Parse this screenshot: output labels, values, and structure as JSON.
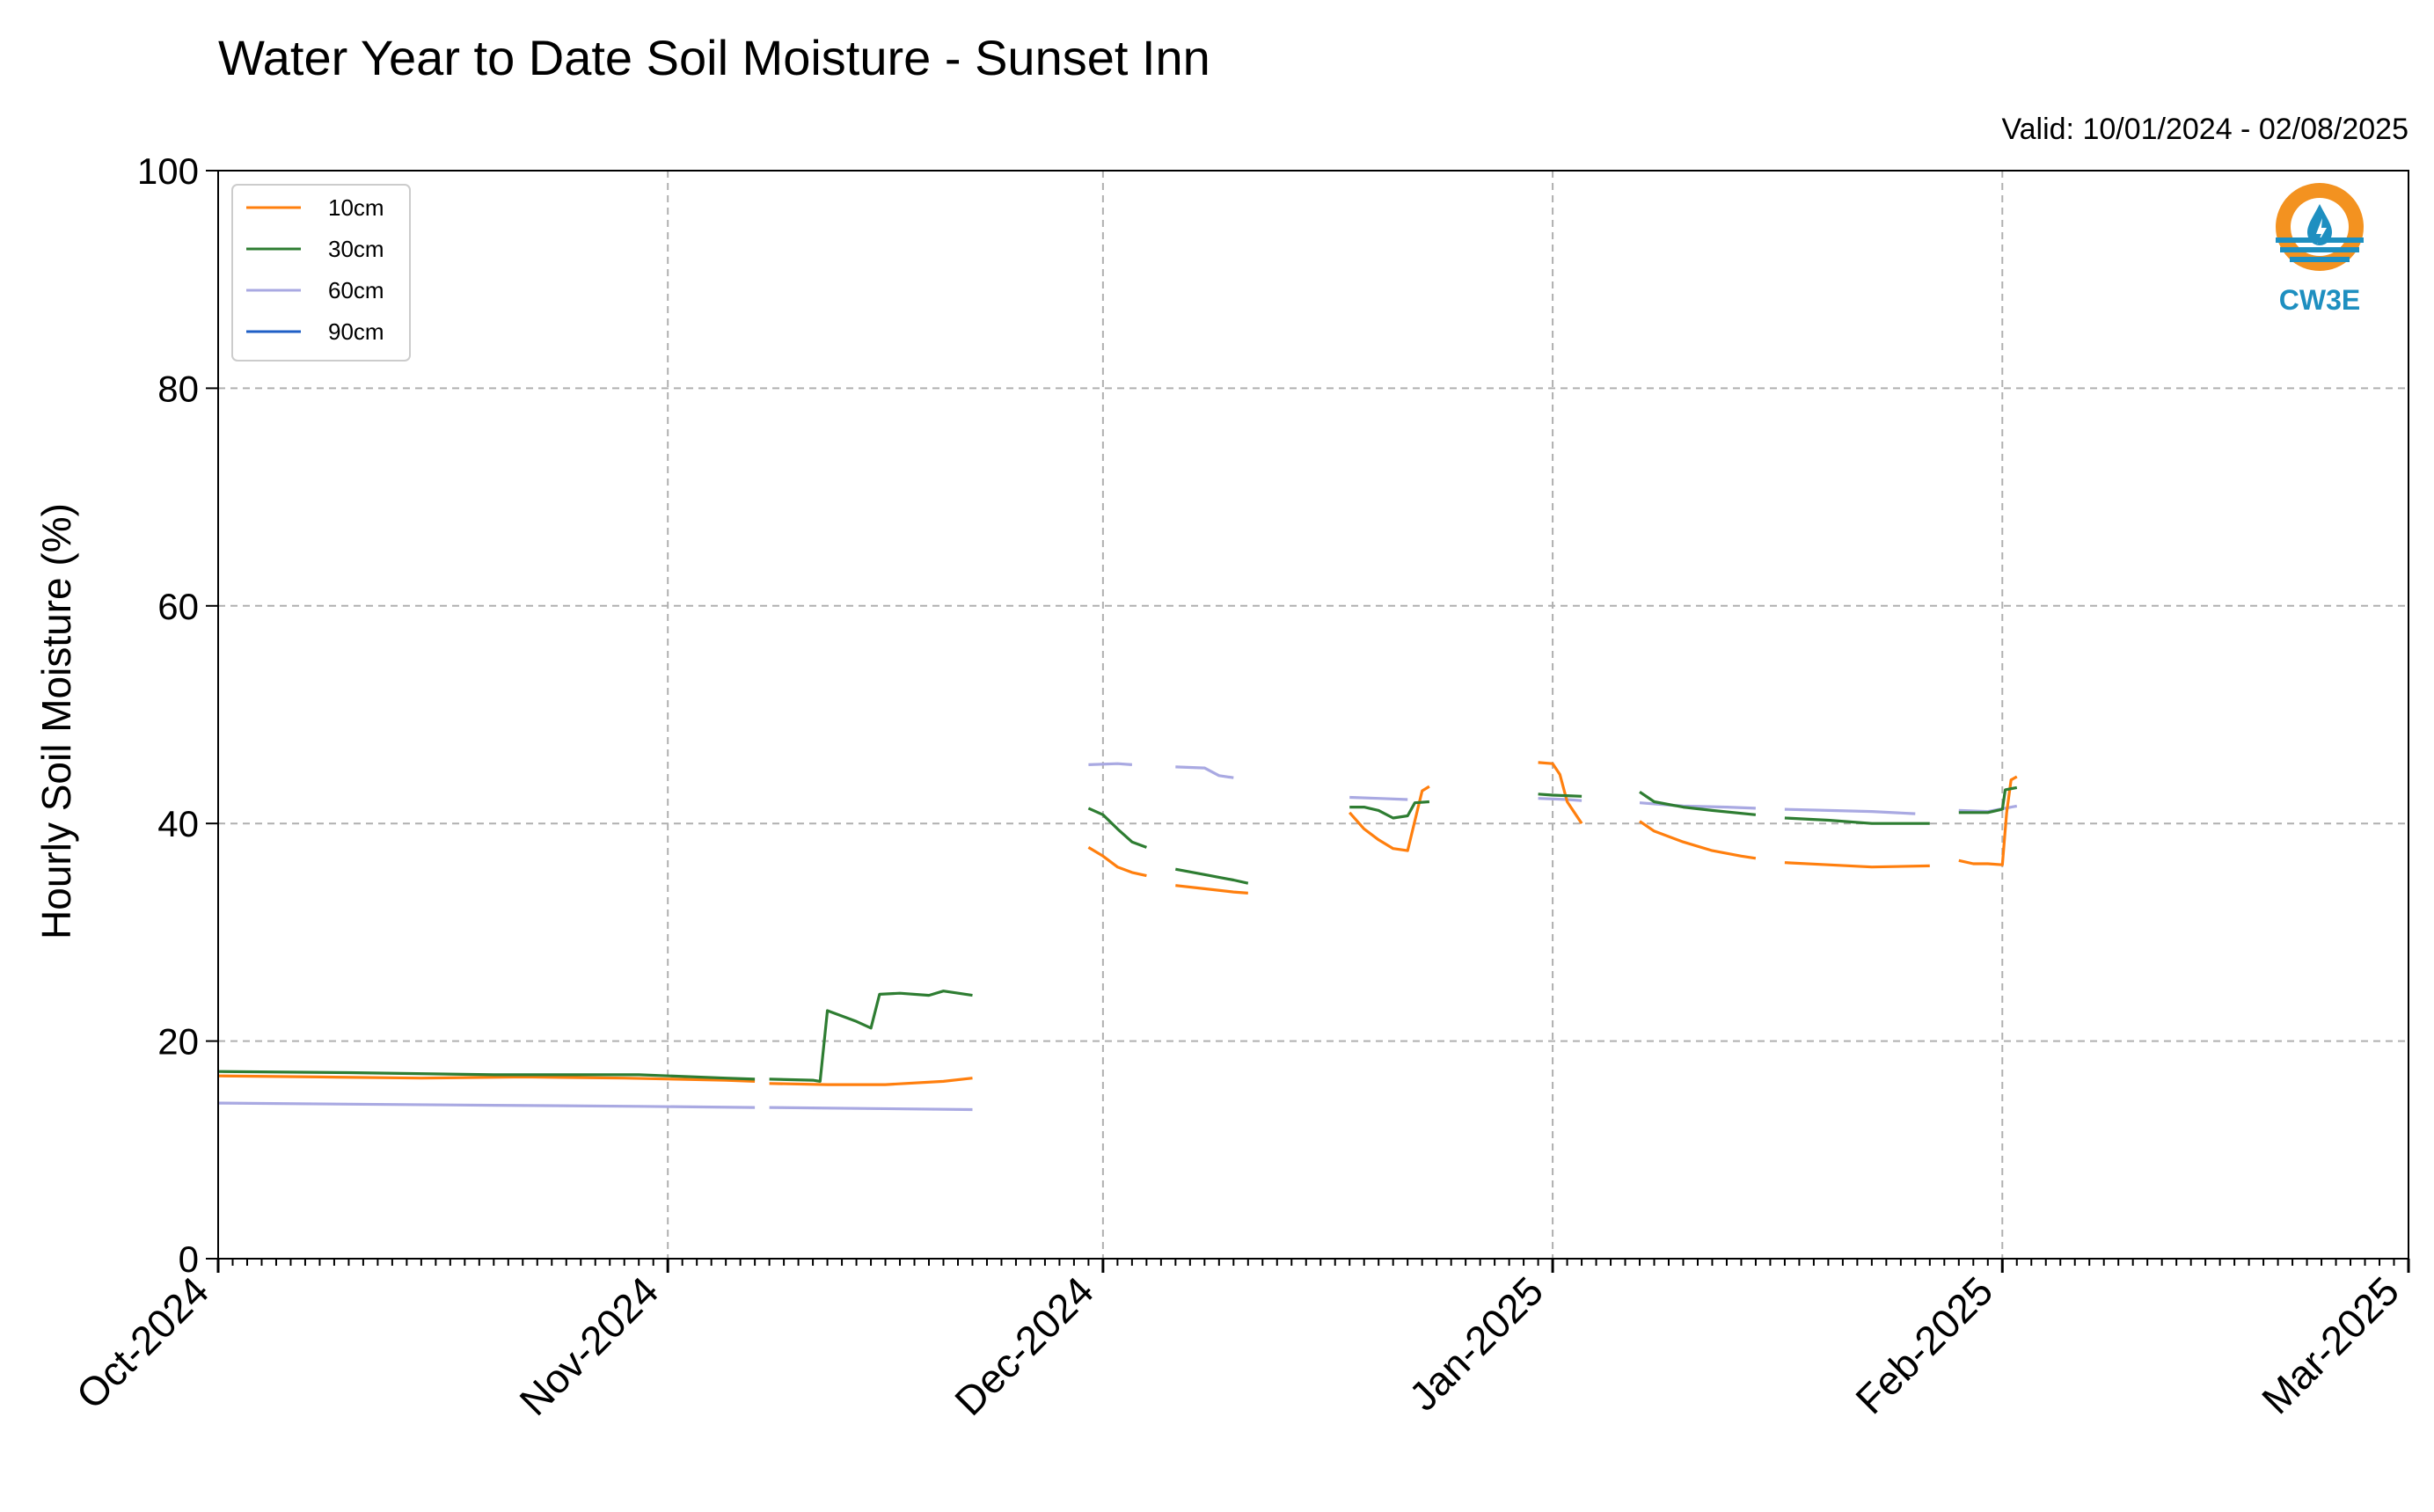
{
  "chart_data": {
    "type": "line",
    "title": "Water Year to Date Soil Moisture - Sunset Inn",
    "subtitle": "Valid: 10/01/2024 - 02/08/2025",
    "ylabel": "Hourly Soil Moisture (%)",
    "xlabel": "",
    "ylim": [
      0,
      100
    ],
    "xlim": [
      "2024-10-01",
      "2025-03-01"
    ],
    "yticks": [
      0,
      20,
      40,
      60,
      80,
      100
    ],
    "ytick_labels": [
      "0",
      "20",
      "40",
      "60",
      "80",
      "100"
    ],
    "xticks": [
      "2024-10-01",
      "2024-11-01",
      "2024-12-01",
      "2025-01-01",
      "2025-02-01",
      "2025-03-01"
    ],
    "xtick_labels": [
      "Oct-2024",
      "Nov-2024",
      "Dec-2024",
      "Jan-2025",
      "Feb-2025",
      "Mar-2025"
    ],
    "grid": true,
    "legend_position": "top-left",
    "logo_text": "CW3E",
    "series": [
      {
        "name": "10cm",
        "color": "#ff7f0e",
        "segments": [
          [
            [
              "2024-10-01",
              16.8
            ],
            [
              "2024-10-08",
              16.7
            ],
            [
              "2024-10-15",
              16.6
            ],
            [
              "2024-10-22",
              16.7
            ],
            [
              "2024-10-29",
              16.6
            ],
            [
              "2024-11-05",
              16.4
            ],
            [
              "2024-11-07",
              16.3
            ]
          ],
          [
            [
              "2024-11-08",
              16.1
            ],
            [
              "2024-11-12",
              16.0
            ],
            [
              "2024-11-16",
              16.0
            ],
            [
              "2024-11-20",
              16.3
            ],
            [
              "2024-11-22",
              16.6
            ]
          ],
          [
            [
              "2024-11-30",
              37.8
            ],
            [
              "2024-12-01",
              37.0
            ],
            [
              "2024-12-02",
              36.0
            ],
            [
              "2024-12-03",
              35.5
            ],
            [
              "2024-12-04",
              35.2
            ]
          ],
          [
            [
              "2024-12-06",
              34.3
            ],
            [
              "2024-12-08",
              34.0
            ],
            [
              "2024-12-10",
              33.7
            ],
            [
              "2024-12-11",
              33.6
            ]
          ],
          [
            [
              "2024-12-18",
              41.0
            ],
            [
              "2024-12-19",
              39.5
            ],
            [
              "2024-12-20",
              38.5
            ],
            [
              "2024-12-21",
              37.7
            ],
            [
              "2024-12-22",
              37.5
            ],
            [
              "2024-12-23",
              43.0
            ],
            [
              "2024-12-23.5",
              43.4
            ]
          ],
          [
            [
              "2024-12-31",
              45.6
            ],
            [
              "2025-01-01",
              45.5
            ],
            [
              "2025-01-01.5",
              44.5
            ],
            [
              "2025-01-02",
              42.0
            ],
            [
              "2025-01-03",
              40.0
            ]
          ],
          [
            [
              "2025-01-07",
              40.2
            ],
            [
              "2025-01-08",
              39.3
            ],
            [
              "2025-01-10",
              38.3
            ],
            [
              "2025-01-12",
              37.5
            ],
            [
              "2025-01-14",
              37.0
            ],
            [
              "2025-01-15",
              36.8
            ]
          ],
          [
            [
              "2025-01-17",
              36.4
            ],
            [
              "2025-01-20",
              36.2
            ],
            [
              "2025-01-23",
              36.0
            ],
            [
              "2025-01-27",
              36.1
            ]
          ],
          [
            [
              "2025-01-29",
              36.6
            ],
            [
              "2025-01-30",
              36.3
            ],
            [
              "2025-01-31",
              36.3
            ],
            [
              "2025-02-01",
              36.2
            ],
            [
              "2025-02-01.3",
              41.0
            ],
            [
              "2025-02-01.6",
              44.0
            ],
            [
              "2025-02-02",
              44.3
            ]
          ]
        ]
      },
      {
        "name": "30cm",
        "color": "#2e7d32",
        "segments": [
          [
            [
              "2024-10-01",
              17.2
            ],
            [
              "2024-10-10",
              17.1
            ],
            [
              "2024-10-20",
              16.9
            ],
            [
              "2024-10-30",
              16.9
            ],
            [
              "2024-11-05",
              16.6
            ],
            [
              "2024-11-07",
              16.5
            ]
          ],
          [
            [
              "2024-11-08",
              16.5
            ],
            [
              "2024-11-11",
              16.4
            ],
            [
              "2024-11-11.5",
              16.3
            ],
            [
              "2024-11-12",
              22.8
            ],
            [
              "2024-11-13",
              22.3
            ],
            [
              "2024-11-14",
              21.8
            ],
            [
              "2024-11-15",
              21.2
            ],
            [
              "2024-11-15.6",
              24.3
            ],
            [
              "2024-11-17",
              24.4
            ],
            [
              "2024-11-19",
              24.2
            ],
            [
              "2024-11-20",
              24.6
            ],
            [
              "2024-11-22",
              24.2
            ]
          ],
          [
            [
              "2024-11-30",
              41.4
            ],
            [
              "2024-12-01",
              40.8
            ],
            [
              "2024-12-02",
              39.5
            ],
            [
              "2024-12-03",
              38.3
            ],
            [
              "2024-12-04",
              37.8
            ]
          ],
          [
            [
              "2024-12-06",
              35.8
            ],
            [
              "2024-12-08",
              35.3
            ],
            [
              "2024-12-10",
              34.8
            ],
            [
              "2024-12-11",
              34.5
            ]
          ],
          [
            [
              "2024-12-18",
              41.5
            ],
            [
              "2024-12-19",
              41.5
            ],
            [
              "2024-12-20",
              41.2
            ],
            [
              "2024-12-21",
              40.5
            ],
            [
              "2024-12-22",
              40.7
            ],
            [
              "2024-12-22.5",
              41.9
            ],
            [
              "2024-12-23.5",
              42.0
            ]
          ],
          [
            [
              "2024-12-31",
              42.7
            ],
            [
              "2025-01-01",
              42.6
            ],
            [
              "2025-01-03",
              42.5
            ]
          ],
          [
            [
              "2025-01-07",
              42.9
            ],
            [
              "2025-01-08",
              42.0
            ],
            [
              "2025-01-10",
              41.5
            ],
            [
              "2025-01-12",
              41.2
            ],
            [
              "2025-01-15",
              40.8
            ]
          ],
          [
            [
              "2025-01-17",
              40.5
            ],
            [
              "2025-01-20",
              40.3
            ],
            [
              "2025-01-23",
              40.0
            ],
            [
              "2025-01-27",
              40.0
            ]
          ],
          [
            [
              "2025-01-29",
              41.0
            ],
            [
              "2025-01-31",
              41.0
            ],
            [
              "2025-02-01",
              41.3
            ],
            [
              "2025-02-01.2",
              43.1
            ],
            [
              "2025-02-02",
              43.3
            ]
          ]
        ]
      },
      {
        "name": "60cm",
        "color": "#a9a9e2",
        "segments": [
          [
            [
              "2024-10-01",
              14.3
            ],
            [
              "2024-10-10",
              14.2
            ],
            [
              "2024-10-20",
              14.1
            ],
            [
              "2024-10-30",
              14.0
            ],
            [
              "2024-11-07",
              13.9
            ]
          ],
          [
            [
              "2024-11-08",
              13.9
            ],
            [
              "2024-11-15",
              13.8
            ],
            [
              "2024-11-22",
              13.7
            ]
          ],
          [
            [
              "2024-11-30",
              45.4
            ],
            [
              "2024-12-02",
              45.5
            ],
            [
              "2024-12-03",
              45.4
            ]
          ],
          [
            [
              "2024-12-06",
              45.2
            ],
            [
              "2024-12-08",
              45.1
            ],
            [
              "2024-12-09",
              44.4
            ],
            [
              "2024-12-10",
              44.2
            ]
          ],
          [
            [
              "2024-12-18",
              42.4
            ],
            [
              "2024-12-20",
              42.3
            ],
            [
              "2024-12-22",
              42.2
            ]
          ],
          [
            [
              "2024-12-31",
              42.3
            ],
            [
              "2025-01-02",
              42.2
            ],
            [
              "2025-01-03",
              42.1
            ]
          ],
          [
            [
              "2025-01-07",
              41.9
            ],
            [
              "2025-01-10",
              41.6
            ],
            [
              "2025-01-13",
              41.5
            ],
            [
              "2025-01-15",
              41.4
            ]
          ],
          [
            [
              "2025-01-17",
              41.3
            ],
            [
              "2025-01-20",
              41.2
            ],
            [
              "2025-01-23",
              41.1
            ],
            [
              "2025-01-26",
              40.9
            ]
          ],
          [
            [
              "2025-01-29",
              41.2
            ],
            [
              "2025-01-31",
              41.1
            ],
            [
              "2025-02-02",
              41.6
            ]
          ]
        ]
      },
      {
        "name": "90cm",
        "color": "#1f5fc6",
        "segments": []
      }
    ]
  }
}
